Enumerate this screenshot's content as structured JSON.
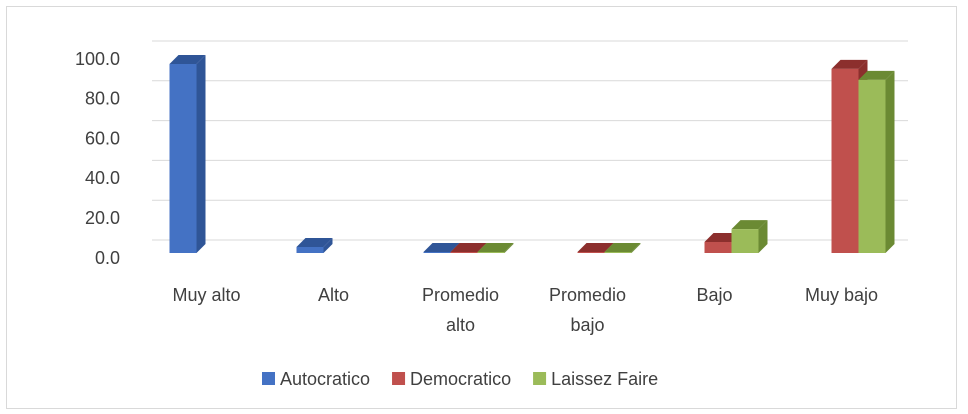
{
  "chart_data": {
    "type": "bar3d",
    "categories": [
      "Muy alto",
      "Alto",
      "Promedio alto",
      "Promedio bajo",
      "Bajo",
      "Muy bajo"
    ],
    "series": [
      {
        "name": "Autocratico",
        "color": "#4472c4",
        "side": "#2f5597",
        "values": [
          95,
          3,
          0,
          null,
          null,
          null
        ]
      },
      {
        "name": "Democratico",
        "color": "#c0504d",
        "side": "#8c2f2d",
        "values": [
          null,
          null,
          0,
          0,
          5.5,
          92.5
        ]
      },
      {
        "name": "Laissez Faire",
        "color": "#9bbb59",
        "side": "#6b8a33",
        "values": [
          null,
          null,
          0,
          0,
          12,
          87
        ]
      }
    ],
    "ylim": [
      0,
      100
    ],
    "yticks": [
      {
        "value": 0,
        "label": "0.0"
      },
      {
        "value": 20,
        "label": "20.0"
      },
      {
        "value": 40,
        "label": "40.0"
      },
      {
        "value": 60,
        "label": "60.0"
      },
      {
        "value": 80,
        "label": "80.0"
      },
      {
        "value": 100,
        "label": "100.0"
      }
    ],
    "grid": true,
    "legend": "bottom"
  }
}
